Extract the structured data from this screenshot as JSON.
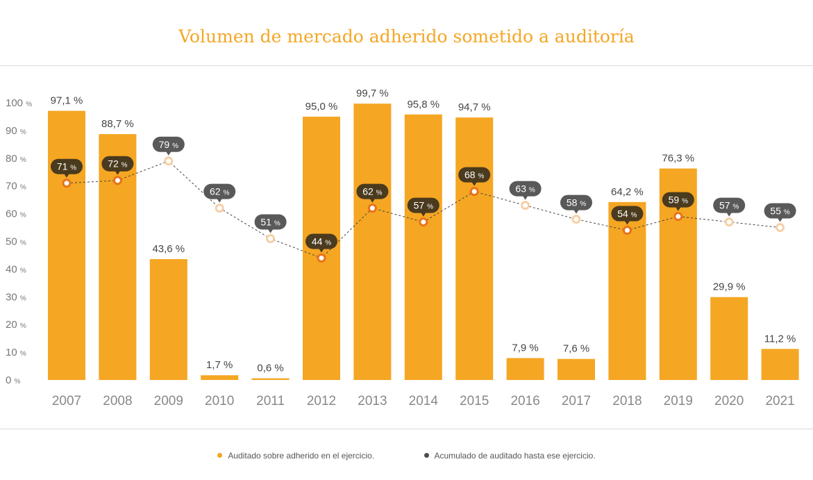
{
  "chart_data": {
    "type": "bar",
    "title": "Volumen de mercado adherido sometido a auditoría",
    "xlabel": "",
    "ylabel": "",
    "ylim": [
      0,
      100
    ],
    "yticks": [
      0,
      10,
      20,
      30,
      40,
      50,
      60,
      70,
      80,
      90,
      100
    ],
    "ytick_unit": "%",
    "grid": false,
    "legend_position": "bottom",
    "categories": [
      "2007",
      "2008",
      "2009",
      "2010",
      "2011",
      "2012",
      "2013",
      "2014",
      "2015",
      "2016",
      "2017",
      "2018",
      "2019",
      "2020",
      "2021"
    ],
    "series": [
      {
        "name": "Auditado sobre adherido en el ejercicio.",
        "kind": "bar",
        "color": "#f5a623",
        "values": [
          97.1,
          88.7,
          43.6,
          1.7,
          0.6,
          95.0,
          99.7,
          95.8,
          94.7,
          7.9,
          7.6,
          64.2,
          76.3,
          29.9,
          11.2
        ],
        "labels": [
          "97,1 %",
          "88,7 %",
          "43,6 %",
          "1,7 %",
          "0,6 %",
          "95,0 %",
          "99,7 %",
          "95,8 %",
          "94,7 %",
          "7,9 %",
          "7,6 %",
          "64,2 %",
          "76,3 %",
          "29,9 %",
          "11,2 %"
        ]
      },
      {
        "name": "Acumulado de auditado hasta ese ejercicio.",
        "kind": "line",
        "color": "#4d4d4d",
        "values": [
          71,
          72,
          79,
          62,
          51,
          44,
          62,
          57,
          68,
          63,
          58,
          54,
          59,
          57,
          55
        ],
        "labels": [
          "71",
          "72",
          "79",
          "62",
          "51",
          "44",
          "62",
          "57",
          "68",
          "63",
          "58",
          "54",
          "59",
          "57",
          "55"
        ],
        "label_unit": "%"
      }
    ]
  },
  "legend": {
    "bar_label": "Auditado sobre adherido en el ejercicio.",
    "bar_color": "#f5a623",
    "line_label": "Acumulado de auditado hasta ese ejercicio.",
    "line_color": "#4d4d4d"
  }
}
